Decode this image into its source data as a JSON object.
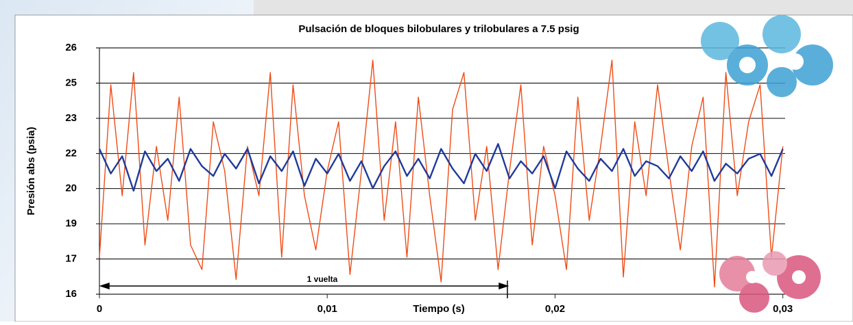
{
  "chart_data": {
    "type": "line",
    "title": "Pulsación de bloques bilobulares y trilobulares a 7.5 psig",
    "x_label": "Tiempo (s)",
    "y_label": "Presión abs (psia)",
    "annotation": "1 vuelta",
    "xlim": [
      0,
      0.0301
    ],
    "xticks": [
      0,
      {
        "value": 0.01,
        "label": "0,01"
      },
      {
        "value": 0.02,
        "label": "0,02"
      },
      {
        "value": 0.03,
        "label": "0,03"
      }
    ],
    "ylim": [
      16,
      26
    ],
    "yticks": [
      16,
      {
        "value": 17.43,
        "label": "17"
      },
      {
        "value": 18.86,
        "label": "19"
      },
      {
        "value": 20.29,
        "label": "20"
      },
      {
        "value": 21.71,
        "label": "22"
      },
      {
        "value": 23.14,
        "label": "23"
      },
      {
        "value": 24.57,
        "label": "25"
      },
      26
    ],
    "grid": true,
    "x": [
      0,
      0.0005,
      0.001,
      0.0015,
      0.002,
      0.0025,
      0.003,
      0.0035,
      0.004,
      0.0045,
      0.005,
      0.0055,
      0.006,
      0.0065,
      0.007,
      0.0075,
      0.008,
      0.0085,
      0.009,
      0.0095,
      0.01,
      0.0105,
      0.011,
      0.0115,
      0.012,
      0.0125,
      0.013,
      0.0135,
      0.014,
      0.0145,
      0.015,
      0.0155,
      0.016,
      0.0165,
      0.017,
      0.0175,
      0.018,
      0.0185,
      0.019,
      0.0195,
      0.02,
      0.0205,
      0.021,
      0.0215,
      0.022,
      0.0225,
      0.023,
      0.0235,
      0.024,
      0.0245,
      0.025,
      0.0255,
      0.026,
      0.0265,
      0.027,
      0.0275,
      0.028,
      0.0285,
      0.029,
      0.0295,
      0.03
    ],
    "series": [
      {
        "color": "#f04a14",
        "values": [
          17.5,
          24.5,
          20.0,
          25.0,
          18.0,
          22.0,
          19.0,
          24.0,
          18.0,
          17.0,
          23.0,
          21.0,
          16.6,
          22.0,
          20.0,
          25.0,
          17.5,
          24.5,
          20.0,
          17.8,
          21.0,
          23.0,
          16.8,
          21.0,
          25.5,
          19.0,
          23.0,
          17.5,
          24.0,
          20.0,
          16.5,
          23.5,
          25.0,
          19.0,
          22.0,
          17.0,
          21.0,
          24.5,
          18.0,
          22.0,
          20.0,
          17.0,
          24.0,
          19.0,
          22.0,
          25.5,
          16.7,
          23.0,
          20.0,
          24.5,
          21.0,
          17.8,
          22.0,
          24.0,
          16.3,
          25.0,
          20.0,
          23.0,
          24.5,
          17.5,
          22.0
        ]
      },
      {
        "color": "#1f3a9a",
        "values": [
          21.9,
          20.9,
          21.6,
          20.2,
          21.8,
          21.0,
          21.5,
          20.6,
          21.9,
          21.2,
          20.8,
          21.7,
          21.1,
          21.9,
          20.5,
          21.6,
          21.0,
          21.8,
          20.4,
          21.5,
          20.9,
          21.7,
          20.6,
          21.4,
          20.3,
          21.2,
          21.8,
          20.8,
          21.5,
          20.7,
          21.9,
          21.1,
          20.5,
          21.7,
          21.0,
          22.1,
          20.7,
          21.4,
          20.9,
          21.6,
          20.3,
          21.8,
          21.1,
          20.6,
          21.5,
          21.0,
          21.9,
          20.8,
          21.4,
          21.2,
          20.7,
          21.6,
          21.0,
          21.8,
          20.6,
          21.3,
          20.9,
          21.5,
          21.7,
          20.8,
          21.9
        ]
      }
    ]
  }
}
